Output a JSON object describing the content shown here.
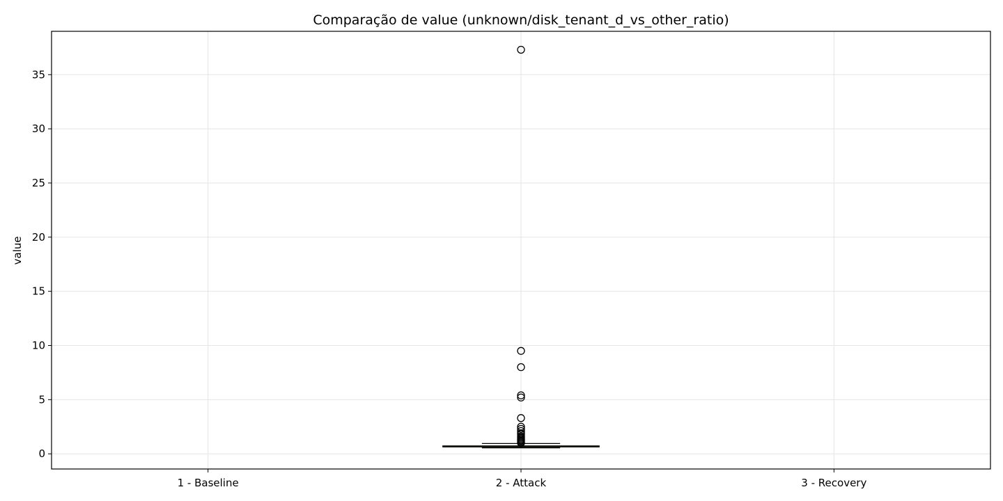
{
  "chart_data": {
    "type": "box",
    "title": "Comparação de value (unknown/disk_tenant_d_vs_other_ratio)",
    "xlabel": "",
    "ylabel": "value",
    "categories": [
      "1 - Baseline",
      "2 - Attack",
      "3 - Recovery"
    ],
    "ylim": [
      -1.4,
      39.0
    ],
    "yticks": [
      0,
      5,
      10,
      15,
      20,
      25,
      30,
      35
    ],
    "grid": true,
    "legend": "none",
    "colors": {
      "box_fill": "#FDE725",
      "box_edge": "#000000",
      "median": "#000000",
      "grid": "#e5e5e5"
    },
    "series": [
      {
        "category": "1 - Baseline",
        "box": null,
        "outliers": []
      },
      {
        "category": "2 - Attack",
        "box": {
          "whislo": 0.55,
          "q1": 0.63,
          "med": 0.68,
          "q3": 0.74,
          "whishi": 0.95
        },
        "outliers": [
          37.3,
          9.5,
          8.0,
          5.4,
          5.2,
          3.3,
          2.5,
          2.3,
          2.1,
          1.9,
          1.8,
          1.6,
          1.5,
          1.4,
          1.3,
          1.2,
          1.1,
          1.0
        ]
      },
      {
        "category": "3 - Recovery",
        "box": null,
        "outliers": []
      }
    ]
  }
}
